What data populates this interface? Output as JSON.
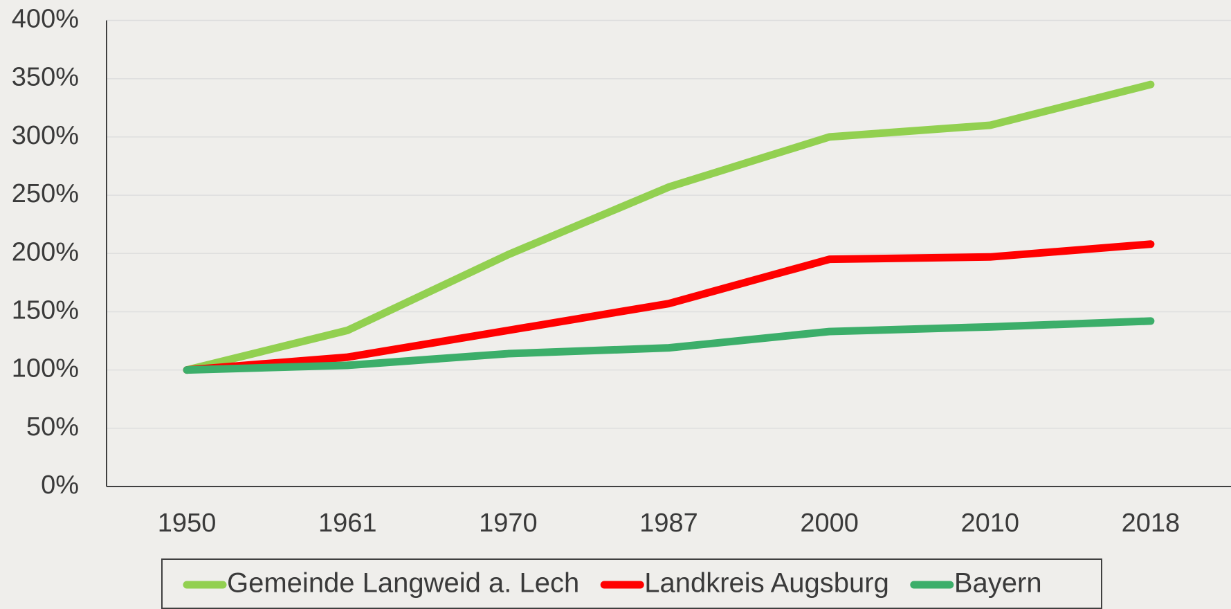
{
  "chart_data": {
    "type": "line",
    "categories": [
      "1950",
      "1961",
      "1970",
      "1987",
      "2000",
      "2010",
      "2018"
    ],
    "series": [
      {
        "name": "Gemeinde Langweid a. Lech",
        "color": "#92d050",
        "values": [
          100,
          134,
          199,
          257,
          300,
          310,
          345
        ]
      },
      {
        "name": "Landkreis Augsburg",
        "color": "#ff0000",
        "values": [
          100,
          111,
          134,
          157,
          195,
          197,
          208
        ]
      },
      {
        "name": "Bayern",
        "color": "#3cae6a",
        "values": [
          100,
          104,
          114,
          119,
          133,
          137,
          142
        ]
      }
    ],
    "ylim": [
      0,
      400
    ],
    "yticks": [
      {
        "value": 0,
        "label": "0%"
      },
      {
        "value": 50,
        "label": "50%"
      },
      {
        "value": 100,
        "label": "100%"
      },
      {
        "value": 150,
        "label": "150%"
      },
      {
        "value": 200,
        "label": "200%"
      },
      {
        "value": 250,
        "label": "250%"
      },
      {
        "value": 300,
        "label": "300%"
      },
      {
        "value": 350,
        "label": "350%"
      },
      {
        "value": 400,
        "label": "400%"
      }
    ],
    "grid": true,
    "legend": "bottom"
  }
}
